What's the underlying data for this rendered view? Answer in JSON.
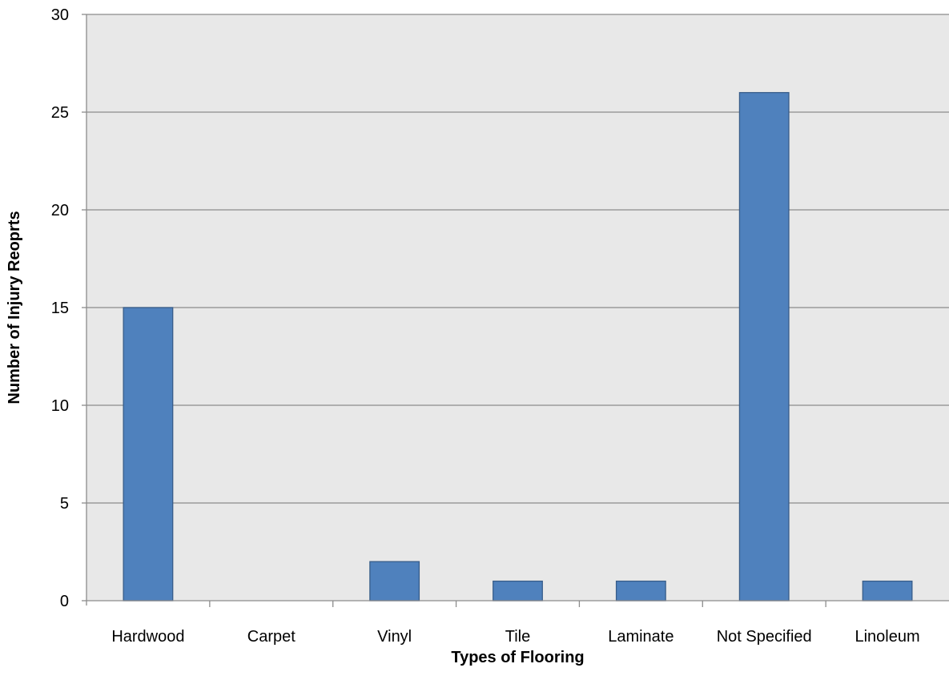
{
  "chart_data": {
    "type": "bar",
    "title": "",
    "xlabel": "Types of Flooring",
    "ylabel": "Number of Injury Reoprts",
    "categories": [
      "Hardwood",
      "Carpet",
      "Vinyl",
      "Tile",
      "Laminate",
      "Not Specified",
      "Linoleum"
    ],
    "values": [
      15,
      0,
      2,
      1,
      1,
      26,
      1
    ],
    "ylim": [
      0,
      30
    ],
    "yticks": [
      0,
      5,
      10,
      15,
      20,
      25,
      30
    ],
    "grid": true,
    "legend": "none",
    "colors": {
      "bar_fill": "#4f81bd",
      "bar_stroke": "#385d8a",
      "plot_background": "#e8e8e8",
      "grid": "#8c8c8c",
      "axis": "#8c8c8c"
    }
  }
}
